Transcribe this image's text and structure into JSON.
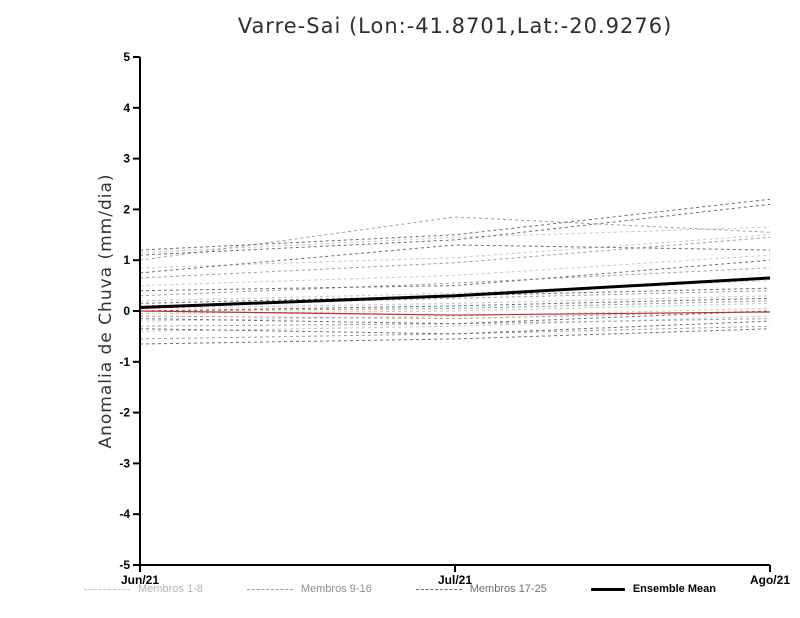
{
  "page": {
    "background": "#ffffff"
  },
  "chart_data": {
    "type": "line",
    "title": "Varre-Sai (Lon:-41.8701,Lat:-20.9276)",
    "ylabel": "Anomalia de Chuva (mm/dia)",
    "x_tick_labels": [
      "Jun/21",
      "Jul/21",
      "Ago/21"
    ],
    "x": [
      0,
      1,
      2
    ],
    "xlim": [
      0,
      2
    ],
    "ylim": [
      -5,
      5
    ],
    "y_ticks": [
      -5,
      -4,
      -3,
      -2,
      -1,
      0,
      1,
      2,
      3,
      4,
      5
    ],
    "grid": false,
    "legend_position": "bottom",
    "groups": [
      {
        "name": "Membros 1-8",
        "color": "#c6c6c6",
        "line_style": "dashed",
        "series": [
          [
            1.15,
            1.45,
            1.65
          ],
          [
            0.85,
            1.05,
            1.5
          ],
          [
            0.5,
            0.7,
            1.1
          ],
          [
            0.2,
            0.35,
            0.6
          ],
          [
            0.05,
            0.15,
            0.3
          ],
          [
            -0.05,
            0.0,
            0.15
          ],
          [
            -0.2,
            -0.1,
            0.05
          ],
          [
            -0.4,
            -0.3,
            -0.1
          ]
        ]
      },
      {
        "name": "Membros 9-16",
        "color": "#9e9e9e",
        "line_style": "dashed",
        "series": [
          [
            1.0,
            1.85,
            1.55
          ],
          [
            0.65,
            0.95,
            1.45
          ],
          [
            0.3,
            0.55,
            0.85
          ],
          [
            0.1,
            0.25,
            0.4
          ],
          [
            0.0,
            0.05,
            0.2
          ],
          [
            -0.1,
            -0.15,
            0.0
          ],
          [
            -0.3,
            -0.25,
            -0.15
          ],
          [
            -0.55,
            -0.45,
            -0.3
          ]
        ]
      },
      {
        "name": "Membros 17-25",
        "color": "#6e6e6e",
        "line_style": "dashed",
        "series": [
          [
            1.2,
            1.5,
            2.2
          ],
          [
            1.1,
            1.4,
            2.1
          ],
          [
            0.75,
            1.3,
            1.2
          ],
          [
            0.4,
            0.5,
            1.0
          ],
          [
            0.15,
            0.3,
            0.45
          ],
          [
            0.0,
            0.1,
            0.25
          ],
          [
            -0.15,
            -0.25,
            0.0
          ],
          [
            -0.35,
            -0.45,
            -0.2
          ],
          [
            -0.65,
            -0.55,
            -0.35
          ]
        ]
      }
    ],
    "reference_line": {
      "name": "zero-reference",
      "color": "#cc2a2a",
      "values": [
        0.0,
        -0.08,
        -0.02
      ]
    },
    "ensemble_mean": {
      "name": "Ensemble Mean",
      "color": "#000000",
      "values": [
        0.07,
        0.3,
        0.65
      ]
    }
  },
  "legend": {
    "items": [
      {
        "label": "Membros 1-8",
        "color": "#c6c6c6",
        "label_color": "#b4b4b4",
        "style": "dashed"
      },
      {
        "label": "Membros 9-16",
        "color": "#9e9e9e",
        "label_color": "#8e8e8e",
        "style": "dashed"
      },
      {
        "label": "Membros 17-25",
        "color": "#6e6e6e",
        "label_color": "#6e6e6e",
        "style": "dashed"
      },
      {
        "label": "Ensemble Mean",
        "color": "#000000",
        "label_color": "#000000",
        "style": "solid"
      }
    ]
  }
}
